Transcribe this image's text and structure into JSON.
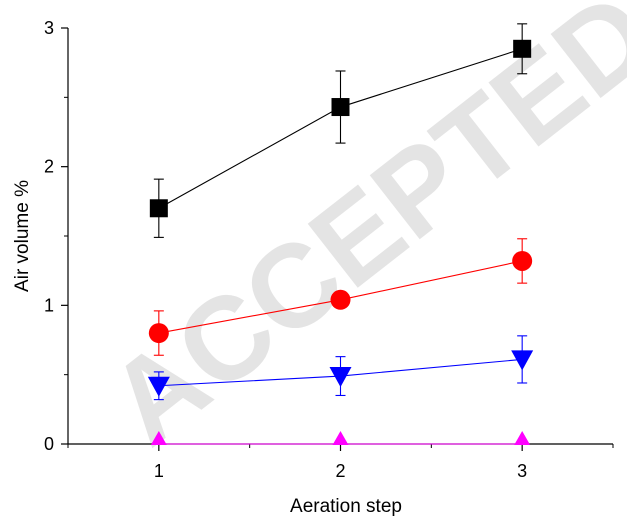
{
  "watermark_text": "ACCEPTED MANUSCRIPT",
  "chart_data": {
    "type": "line",
    "title": "",
    "xlabel": "Aeration step",
    "ylabel": "Air volume %",
    "x": [
      1,
      2,
      3
    ],
    "xlim": [
      0.5,
      3.5
    ],
    "ylim": [
      0,
      3
    ],
    "xticks": [
      "1",
      "2",
      "3"
    ],
    "yticks": [
      "0",
      "1",
      "2",
      "3"
    ],
    "grid": false,
    "legend": "none",
    "series": [
      {
        "marker": "square",
        "color": "#000000",
        "values": [
          1.7,
          2.43,
          2.85
        ],
        "errors": [
          0.21,
          0.26,
          0.18
        ]
      },
      {
        "marker": "circle",
        "color": "#ff0000",
        "values": [
          0.8,
          1.04,
          1.32
        ],
        "errors": [
          0.16,
          0.05,
          0.16
        ]
      },
      {
        "marker": "triangle-down",
        "color": "#0000ff",
        "values": [
          0.42,
          0.49,
          0.61
        ],
        "errors": [
          0.1,
          0.14,
          0.17
        ]
      },
      {
        "marker": "triangle-up",
        "color": "#ff00ff",
        "values": [
          0.0,
          0.0,
          0.0
        ],
        "errors": [
          0,
          0,
          0
        ]
      }
    ]
  }
}
